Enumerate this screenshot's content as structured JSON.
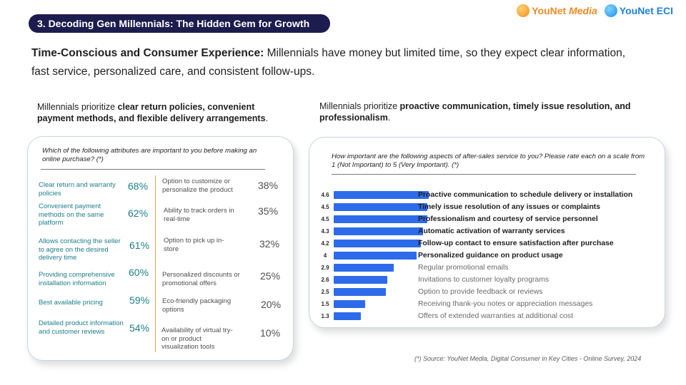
{
  "header": {
    "section_title": "3. Decoding Gen Millennials: The Hidden Gem for Growth",
    "logos": [
      {
        "name": "YouNet Media",
        "text_main": "YouNet ",
        "text_accent": "Media",
        "color": "#f08a24"
      },
      {
        "name": "YouNet ECI",
        "text_main": "YouNet ECI",
        "color": "#1f7fdd"
      }
    ]
  },
  "intro": {
    "lead": "Time-Conscious and Consumer Experience:",
    "body": " Millennials have money but limited time, so they expect clear information, fast service, personalized care, and consistent follow-ups."
  },
  "left": {
    "caption_pre": "Millennials prioritize ",
    "caption_bold": "clear return policies, convenient payment methods, and flexible delivery arrangements",
    "caption_post": ".",
    "question": "Which of the following attributes are important to you before making an online purchase? (*)",
    "attributes_left": [
      {
        "label": "Clear return and warranty policies",
        "pct": "68%"
      },
      {
        "label": "Convenient payment methods on the same platform",
        "pct": "62%"
      },
      {
        "label": "Allows contacting the seller to agree on the desired delivery time",
        "pct": "61%"
      },
      {
        "label": "Providing comprehensive installation information",
        "pct": "60%"
      },
      {
        "label": "Best available pricing",
        "pct": "59%"
      },
      {
        "label": "Detailed product information and customer reviews",
        "pct": "54%"
      }
    ],
    "attributes_right": [
      {
        "label": "Option to customize or personalize the product",
        "pct": "38%"
      },
      {
        "label": "Ability to track orders in real-time",
        "pct": "35%"
      },
      {
        "label": "Option to pick up in-store",
        "pct": "32%"
      },
      {
        "label": "Personalized discounts or promotional offers",
        "pct": "25%"
      },
      {
        "label": "Eco-friendly packaging options",
        "pct": "20%"
      },
      {
        "label": "Availability of virtual try-on or product visualization tools",
        "pct": "10%"
      }
    ]
  },
  "right": {
    "caption_pre": "Millennials prioritize ",
    "caption_bold": "proactive communication, timely issue resolution, and professionalism",
    "caption_post": ".",
    "question": "How important are the following aspects of after-sales service to you? Please rate each on a scale from 1 (Not Important) to 5 (Very Important). (*)"
  },
  "chart_data": {
    "type": "bar",
    "orientation": "horizontal",
    "title": "How important are the following aspects of after-sales service to you? Please rate each on a scale from 1 (Not Important) to 5 (Very Important). (*)",
    "xlim": [
      0,
      5
    ],
    "bar_color": "#2d6bea",
    "categories": [
      "Proactive communication to schedule delivery or installation",
      "Timely issue resolution of any issues or complaints",
      "Professionalism and courtesy of service personnel",
      "Automatic activation of warranty services",
      "Follow-up contact to ensure satisfaction after purchase",
      "Personalized guidance on product usage",
      "Regular promotional emails",
      "Invitations to customer loyalty programs",
      "Option to provide feedback or reviews",
      "Receiving thank-you notes or appreciation messages",
      "Offers of extended warranties at additional cost"
    ],
    "values": [
      4.6,
      4.5,
      4.5,
      4.3,
      4.2,
      4,
      2.9,
      2.6,
      2.5,
      1.5,
      1.3
    ],
    "value_labels": [
      "4.6",
      "4.5",
      "4.5",
      "4.3",
      "4.2",
      "4",
      "2.9",
      "2.6",
      "2.5",
      "1.5",
      "1.3"
    ],
    "emphasized": [
      true,
      true,
      true,
      true,
      true,
      true,
      false,
      false,
      false,
      false,
      false
    ]
  },
  "footnote": "(*) Source: YouNet Media, Digital Consumer in Key Cities - Online Survey, 2024"
}
